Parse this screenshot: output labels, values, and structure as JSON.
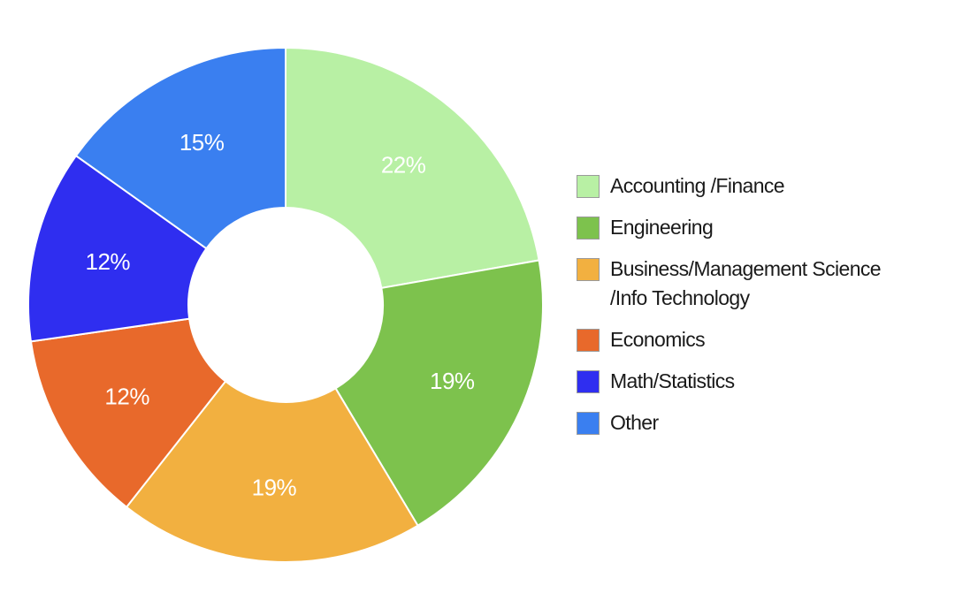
{
  "chart_data": {
    "type": "pie",
    "donut": true,
    "title": "",
    "legend_position": "right",
    "categories": [
      "Accounting /Finance",
      "Engineering",
      "Business/Management Science\n/Info Technology",
      "Economics",
      "Math/Statistics",
      "Other"
    ],
    "values": [
      22,
      19,
      19,
      12,
      12,
      15
    ],
    "labels": [
      "22%",
      "19%",
      "19%",
      "12%",
      "12%",
      "15%"
    ],
    "colors": [
      "#b8f0a4",
      "#7dc24d",
      "#f2b040",
      "#e8692b",
      "#2f2ef0",
      "#3a7ff0"
    ]
  }
}
